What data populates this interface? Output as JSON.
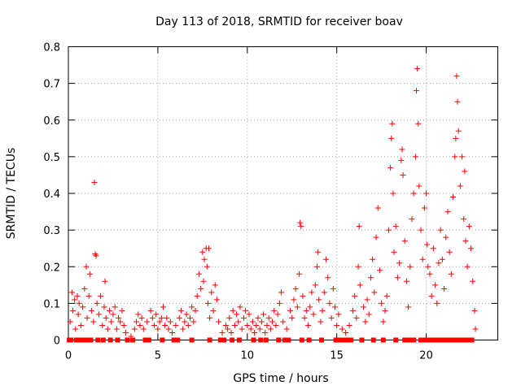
{
  "chart_data": {
    "type": "scatter",
    "title": "Day 113 of 2018, SRMTID for receiver boav",
    "xlabel": "GPS time / hours",
    "ylabel": "SRMTID / TECUs",
    "xlim": [
      0,
      24
    ],
    "ylim": [
      0,
      0.8
    ],
    "xticks": [
      "0",
      "5",
      "10",
      "15",
      "20"
    ],
    "yticks": [
      "0",
      "0.1",
      "0.2",
      "0.3",
      "0.4",
      "0.5",
      "0.6",
      "0.7",
      "0.8"
    ],
    "grid": true,
    "marker": "+",
    "color": "#ff0000",
    "series": [
      {
        "name": "SRMTID",
        "points": [
          [
            0.1,
            0.05
          ],
          [
            0.2,
            0.13
          ],
          [
            0.25,
            0.08
          ],
          [
            0.35,
            0.11
          ],
          [
            0.4,
            0.03
          ],
          [
            0.5,
            0.12
          ],
          [
            0.55,
            0.07
          ],
          [
            0.6,
            0.1
          ],
          [
            0.7,
            0.04
          ],
          [
            0.8,
            0.09
          ],
          [
            0.9,
            0.14
          ],
          [
            1.0,
            0.2
          ],
          [
            1.05,
            0.06
          ],
          [
            1.15,
            0.12
          ],
          [
            1.2,
            0.18
          ],
          [
            1.3,
            0.08
          ],
          [
            1.4,
            0.05
          ],
          [
            1.45,
            0.43
          ],
          [
            1.5,
            0.235
          ],
          [
            1.55,
            0.23
          ],
          [
            1.6,
            0.1
          ],
          [
            1.7,
            0.07
          ],
          [
            1.8,
            0.12
          ],
          [
            1.9,
            0.04
          ],
          [
            2.0,
            0.09
          ],
          [
            2.05,
            0.16
          ],
          [
            2.1,
            0.06
          ],
          [
            2.2,
            0.03
          ],
          [
            2.3,
            0.08
          ],
          [
            2.4,
            0.05
          ],
          [
            2.5,
            0.07
          ],
          [
            2.6,
            0.09
          ],
          [
            2.7,
            0.03
          ],
          [
            2.8,
            0.06
          ],
          [
            2.9,
            0.05
          ],
          [
            3.0,
            0.08
          ],
          [
            3.1,
            0.04
          ],
          [
            3.2,
            0.02
          ],
          [
            3.5,
            0.01
          ],
          [
            3.7,
            0.03
          ],
          [
            3.8,
            0.05
          ],
          [
            3.9,
            0.07
          ],
          [
            4.0,
            0.04
          ],
          [
            4.1,
            0.06
          ],
          [
            4.2,
            0.03
          ],
          [
            4.4,
            0.05
          ],
          [
            4.6,
            0.08
          ],
          [
            4.7,
            0.06
          ],
          [
            4.8,
            0.04
          ],
          [
            4.9,
            0.07
          ],
          [
            5.0,
            0.03
          ],
          [
            5.1,
            0.05
          ],
          [
            5.2,
            0.06
          ],
          [
            5.3,
            0.09
          ],
          [
            5.4,
            0.04
          ],
          [
            5.5,
            0.06
          ],
          [
            5.6,
            0.03
          ],
          [
            5.7,
            0.05
          ],
          [
            5.8,
            0.02
          ],
          [
            6.0,
            0.04
          ],
          [
            6.2,
            0.06
          ],
          [
            6.3,
            0.08
          ],
          [
            6.4,
            0.03
          ],
          [
            6.5,
            0.05
          ],
          [
            6.6,
            0.07
          ],
          [
            6.7,
            0.04
          ],
          [
            6.8,
            0.06
          ],
          [
            6.9,
            0.09
          ],
          [
            7.0,
            0.05
          ],
          [
            7.1,
            0.08
          ],
          [
            7.2,
            0.12
          ],
          [
            7.3,
            0.18
          ],
          [
            7.4,
            0.14
          ],
          [
            7.5,
            0.24
          ],
          [
            7.55,
            0.16
          ],
          [
            7.6,
            0.22
          ],
          [
            7.7,
            0.25
          ],
          [
            7.75,
            0.2
          ],
          [
            7.8,
            0.1
          ],
          [
            7.85,
            0.25
          ],
          [
            7.9,
            0.06
          ],
          [
            8.0,
            0.13
          ],
          [
            8.1,
            0.08
          ],
          [
            8.2,
            0.15
          ],
          [
            8.3,
            0.11
          ],
          [
            8.4,
            0.05
          ],
          [
            8.6,
            0.02
          ],
          [
            8.8,
            0.04
          ],
          [
            8.9,
            0.03
          ],
          [
            9.0,
            0.06
          ],
          [
            9.1,
            0.02
          ],
          [
            9.2,
            0.08
          ],
          [
            9.3,
            0.04
          ],
          [
            9.4,
            0.07
          ],
          [
            9.5,
            0.05
          ],
          [
            9.6,
            0.09
          ],
          [
            9.7,
            0.03
          ],
          [
            9.8,
            0.06
          ],
          [
            9.9,
            0.08
          ],
          [
            10.0,
            0.04
          ],
          [
            10.1,
            0.07
          ],
          [
            10.2,
            0.03
          ],
          [
            10.3,
            0.05
          ],
          [
            10.4,
            0.02
          ],
          [
            10.5,
            0.04
          ],
          [
            10.6,
            0.06
          ],
          [
            10.7,
            0.03
          ],
          [
            10.8,
            0.05
          ],
          [
            10.9,
            0.07
          ],
          [
            11.0,
            0.02
          ],
          [
            11.1,
            0.04
          ],
          [
            11.2,
            0.06
          ],
          [
            11.3,
            0.03
          ],
          [
            11.4,
            0.05
          ],
          [
            11.5,
            0.08
          ],
          [
            11.6,
            0.04
          ],
          [
            11.7,
            0.07
          ],
          [
            11.8,
            0.1
          ],
          [
            11.9,
            0.13
          ],
          [
            12.0,
            0.05
          ],
          [
            12.2,
            0.03
          ],
          [
            12.4,
            0.08
          ],
          [
            12.5,
            0.06
          ],
          [
            12.6,
            0.11
          ],
          [
            12.7,
            0.14
          ],
          [
            12.8,
            0.09
          ],
          [
            12.9,
            0.18
          ],
          [
            12.95,
            0.32
          ],
          [
            13.0,
            0.31
          ],
          [
            13.1,
            0.12
          ],
          [
            13.2,
            0.06
          ],
          [
            13.3,
            0.08
          ],
          [
            13.4,
            0.04
          ],
          [
            13.5,
            0.09
          ],
          [
            13.6,
            0.13
          ],
          [
            13.7,
            0.07
          ],
          [
            13.8,
            0.15
          ],
          [
            13.9,
            0.2
          ],
          [
            13.95,
            0.24
          ],
          [
            14.0,
            0.11
          ],
          [
            14.1,
            0.05
          ],
          [
            14.2,
            0.08
          ],
          [
            14.3,
            0.13
          ],
          [
            14.4,
            0.22
          ],
          [
            14.5,
            0.17
          ],
          [
            14.6,
            0.1
          ],
          [
            14.7,
            0.06
          ],
          [
            14.8,
            0.14
          ],
          [
            14.9,
            0.09
          ],
          [
            15.0,
            0.04
          ],
          [
            15.1,
            0.07
          ],
          [
            15.3,
            0.03
          ],
          [
            15.5,
            0.02
          ],
          [
            15.7,
            0.04
          ],
          [
            15.9,
            0.08
          ],
          [
            16.0,
            0.12
          ],
          [
            16.1,
            0.06
          ],
          [
            16.2,
            0.2
          ],
          [
            16.25,
            0.31
          ],
          [
            16.3,
            0.15
          ],
          [
            16.5,
            0.09
          ],
          [
            16.6,
            0.05
          ],
          [
            16.7,
            0.11
          ],
          [
            16.8,
            0.07
          ],
          [
            16.9,
            0.17
          ],
          [
            17.0,
            0.22
          ],
          [
            17.1,
            0.13
          ],
          [
            17.2,
            0.28
          ],
          [
            17.3,
            0.36
          ],
          [
            17.4,
            0.19
          ],
          [
            17.5,
            0.1
          ],
          [
            17.6,
            0.05
          ],
          [
            17.7,
            0.08
          ],
          [
            17.8,
            0.12
          ],
          [
            17.9,
            0.3
          ],
          [
            18.0,
            0.47
          ],
          [
            18.05,
            0.55
          ],
          [
            18.1,
            0.59
          ],
          [
            18.15,
            0.4
          ],
          [
            18.2,
            0.24
          ],
          [
            18.3,
            0.31
          ],
          [
            18.4,
            0.17
          ],
          [
            18.5,
            0.21
          ],
          [
            18.6,
            0.49
          ],
          [
            18.65,
            0.52
          ],
          [
            18.7,
            0.45
          ],
          [
            18.8,
            0.27
          ],
          [
            18.9,
            0.16
          ],
          [
            19.0,
            0.09
          ],
          [
            19.1,
            0.2
          ],
          [
            19.2,
            0.33
          ],
          [
            19.3,
            0.4
          ],
          [
            19.4,
            0.5
          ],
          [
            19.45,
            0.68
          ],
          [
            19.5,
            0.74
          ],
          [
            19.55,
            0.59
          ],
          [
            19.6,
            0.42
          ],
          [
            19.7,
            0.3
          ],
          [
            19.8,
            0.22
          ],
          [
            19.9,
            0.36
          ],
          [
            20.0,
            0.4
          ],
          [
            20.05,
            0.26
          ],
          [
            20.1,
            0.2
          ],
          [
            20.2,
            0.18
          ],
          [
            20.3,
            0.12
          ],
          [
            20.4,
            0.25
          ],
          [
            20.5,
            0.15
          ],
          [
            20.6,
            0.1
          ],
          [
            20.7,
            0.21
          ],
          [
            20.8,
            0.3
          ],
          [
            20.9,
            0.22
          ],
          [
            21.0,
            0.14
          ],
          [
            21.1,
            0.28
          ],
          [
            21.2,
            0.35
          ],
          [
            21.3,
            0.24
          ],
          [
            21.4,
            0.18
          ],
          [
            21.5,
            0.39
          ],
          [
            21.6,
            0.5
          ],
          [
            21.65,
            0.55
          ],
          [
            21.7,
            0.72
          ],
          [
            21.75,
            0.65
          ],
          [
            21.8,
            0.57
          ],
          [
            21.9,
            0.42
          ],
          [
            22.0,
            0.5
          ],
          [
            22.1,
            0.33
          ],
          [
            22.15,
            0.46
          ],
          [
            22.2,
            0.27
          ],
          [
            22.3,
            0.2
          ],
          [
            22.4,
            0.31
          ],
          [
            22.5,
            0.25
          ],
          [
            22.6,
            0.16
          ],
          [
            22.7,
            0.08
          ],
          [
            22.75,
            0.03
          ],
          [
            0.05,
            0
          ],
          [
            0.15,
            0
          ],
          [
            0.45,
            0
          ],
          [
            0.65,
            0
          ],
          [
            0.85,
            0
          ],
          [
            1.1,
            0
          ],
          [
            1.25,
            0
          ],
          [
            1.65,
            0
          ],
          [
            1.95,
            0
          ],
          [
            2.35,
            0
          ],
          [
            2.75,
            0
          ],
          [
            3.3,
            0
          ],
          [
            3.6,
            0
          ],
          [
            4.3,
            0
          ],
          [
            4.5,
            0
          ],
          [
            5.25,
            0
          ],
          [
            5.9,
            0
          ],
          [
            6.1,
            0
          ],
          [
            6.9,
            0
          ],
          [
            7.9,
            0
          ],
          [
            8.5,
            0
          ],
          [
            8.7,
            0
          ],
          [
            9.15,
            0
          ],
          [
            9.55,
            0
          ],
          [
            10.35,
            0
          ],
          [
            10.75,
            0
          ],
          [
            11.05,
            0
          ],
          [
            11.75,
            0
          ],
          [
            12.1,
            0
          ],
          [
            12.3,
            0
          ],
          [
            13.05,
            0
          ],
          [
            13.45,
            0
          ],
          [
            14.15,
            0
          ],
          [
            14.95,
            0
          ],
          [
            15.2,
            0
          ],
          [
            15.4,
            0
          ],
          [
            15.6,
            0
          ],
          [
            15.8,
            0
          ],
          [
            16.4,
            0
          ],
          [
            17.05,
            0
          ],
          [
            17.6,
            0
          ],
          [
            18.3,
            0
          ],
          [
            18.8,
            0
          ],
          [
            19.05,
            0
          ],
          [
            19.3,
            0
          ],
          [
            19.7,
            0
          ],
          [
            19.9,
            0
          ],
          [
            20.15,
            0
          ],
          [
            20.35,
            0
          ],
          [
            20.55,
            0
          ],
          [
            20.75,
            0
          ],
          [
            20.95,
            0
          ],
          [
            21.15,
            0
          ],
          [
            21.35,
            0
          ],
          [
            21.55,
            0
          ],
          [
            21.75,
            0
          ],
          [
            21.95,
            0
          ],
          [
            22.15,
            0
          ],
          [
            22.35,
            0
          ],
          [
            22.55,
            0
          ]
        ]
      }
    ]
  }
}
